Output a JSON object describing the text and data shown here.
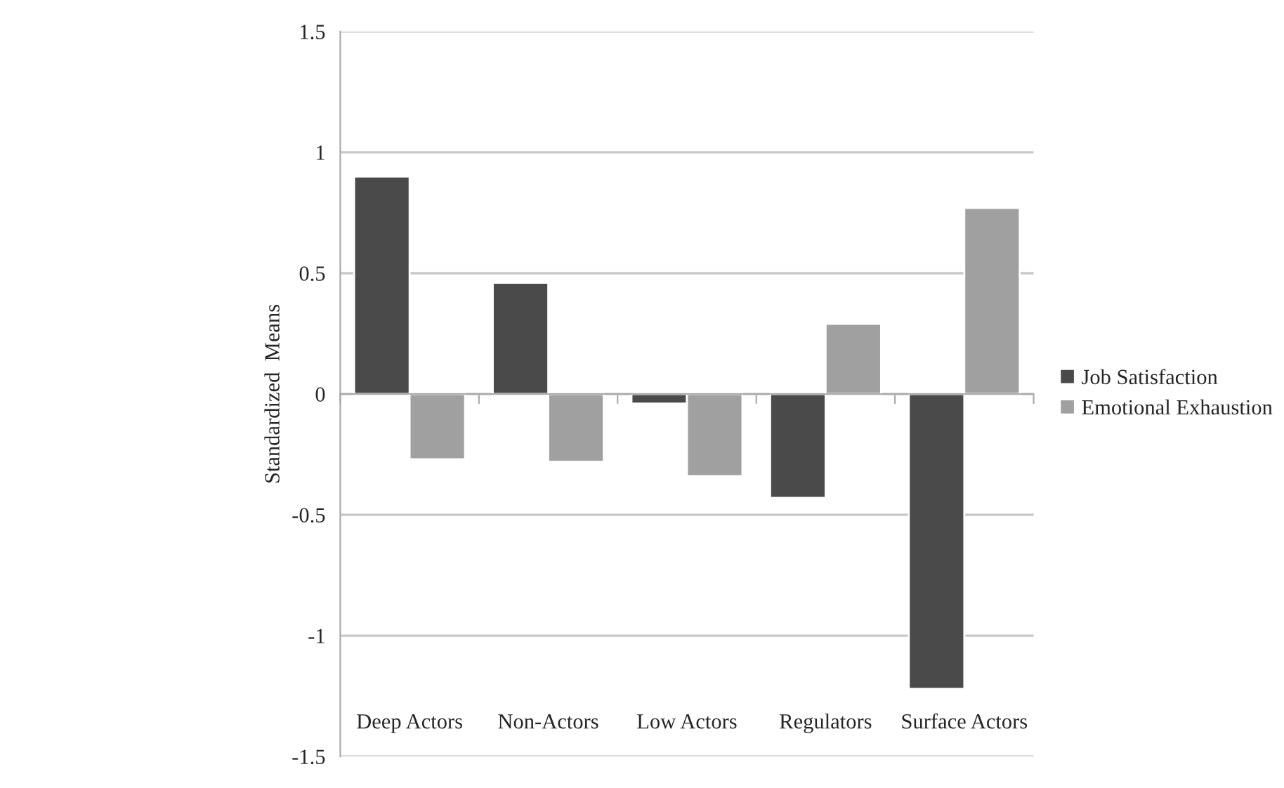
{
  "chart_data": {
    "type": "bar",
    "ylabel": "Standardized  Means",
    "categories": [
      "Deep Actors",
      "Non-Actors",
      "Low Actors",
      "Regulators",
      "Surface Actors"
    ],
    "series": [
      {
        "name": "Job Satisfaction",
        "color": "#4a4a4a",
        "values": [
          0.9,
          0.46,
          -0.04,
          -0.43,
          -1.22
        ]
      },
      {
        "name": "Emotional Exhaustion",
        "color": "#a0a0a0",
        "values": [
          -0.27,
          -0.28,
          -0.34,
          0.29,
          0.77
        ]
      }
    ],
    "ylim": [
      -1.5,
      1.5
    ],
    "yticks": [
      -1.5,
      -1,
      -0.5,
      0,
      0.5,
      1,
      1.5
    ],
    "grid": "y",
    "legend": "right"
  }
}
